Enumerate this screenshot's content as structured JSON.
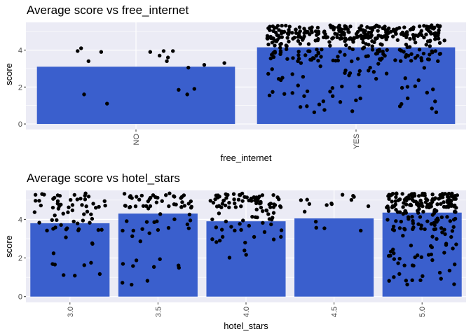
{
  "chart_data": [
    {
      "type": "bar",
      "title": "Average  score  vs  free_internet",
      "xlabel": "free_internet",
      "ylabel": "score",
      "categories": [
        "NO",
        "YES"
      ],
      "values": [
        3.1,
        4.15
      ],
      "ylim": [
        -0.3,
        5.5
      ],
      "yticks": [
        0,
        2,
        4
      ],
      "bar_color": "#3a5fcd",
      "point_color": "#000000",
      "panel_bg": "#ebebf5",
      "grid": true,
      "jitter_points": [
        {
          "category": "NO",
          "scores": [
            3.95,
            3.9,
            3.7,
            3.3,
            3.6,
            3.4,
            3.95,
            3.2,
            3.95,
            1.9,
            1.85,
            1.1,
            3.05,
            4.1,
            3.9,
            3.4,
            1.6,
            1.6
          ]
        }
      ]
    },
    {
      "type": "bar",
      "title": "Average  score  vs  hotel_stars",
      "xlabel": "hotel_stars",
      "ylabel": "score",
      "categories": [
        "3.0",
        "3.5",
        "4.0",
        "4.5",
        "5.0"
      ],
      "values": [
        3.8,
        4.3,
        3.9,
        4.05,
        4.35
      ],
      "ylim": [
        -0.3,
        5.5
      ],
      "yticks": [
        0,
        2,
        4
      ],
      "bar_color": "#3a5fcd",
      "point_color": "#000000",
      "panel_bg": "#ebebf5",
      "grid": true
    }
  ]
}
